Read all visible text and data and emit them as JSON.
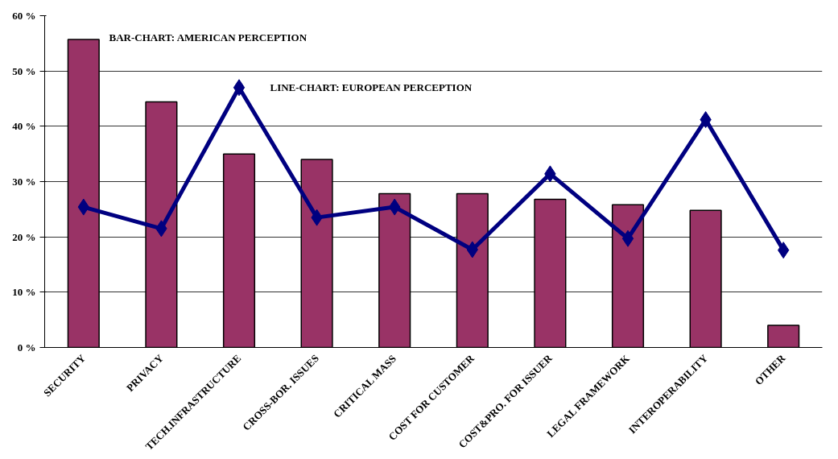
{
  "chart_data": {
    "type": "bar",
    "categories": [
      "SECURITY",
      "PRIVACY",
      "TECH.INFRASTRUCTURE",
      "CROSS-BOR. ISSUES",
      "CRITICAL MASS",
      "COST FOR CUSTOMER",
      "COST&PRO. FOR ISSUER",
      "LEGAL FRAMEWORK",
      "INTEROPERABILITY",
      "OTHER"
    ],
    "series": [
      {
        "color": "#993366",
        "values": [
          55.7,
          44.4,
          35.0,
          34.0,
          27.8,
          27.8,
          26.8,
          25.8,
          24.8,
          4.0
        ]
      },
      {
        "type": "line",
        "color": "#000080",
        "marker": "diamond",
        "values": [
          25.4,
          21.5,
          47.0,
          23.5,
          25.4,
          17.7,
          31.4,
          19.7,
          41.2,
          17.6
        ]
      }
    ],
    "ylim": [
      0,
      60
    ],
    "yticks": [
      {
        "value": 0,
        "label": "0 %"
      },
      {
        "value": 10,
        "label": "10 %"
      },
      {
        "value": 20,
        "label": "20 %"
      },
      {
        "value": 30,
        "label": "30 %"
      },
      {
        "value": 40,
        "label": "40 %"
      },
      {
        "value": 50,
        "label": "50 %"
      },
      {
        "value": 60,
        "label": "60 %"
      }
    ],
    "grid": "y",
    "annotations": [
      "BAR-CHART: AMERICAN PERCEPTION",
      "LINE-CHART: EUROPEAN PERCEPTION"
    ]
  }
}
